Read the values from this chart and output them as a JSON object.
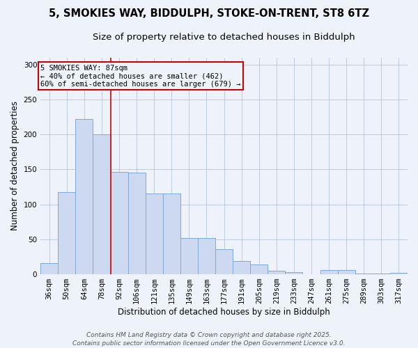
{
  "title_line1": "5, SMOKIES WAY, BIDDULPH, STOKE-ON-TRENT, ST8 6TZ",
  "title_line2": "Size of property relative to detached houses in Biddulph",
  "xlabel": "Distribution of detached houses by size in Biddulph",
  "ylabel": "Number of detached properties",
  "categories": [
    "36sqm",
    "50sqm",
    "64sqm",
    "78sqm",
    "92sqm",
    "106sqm",
    "121sqm",
    "135sqm",
    "149sqm",
    "163sqm",
    "177sqm",
    "191sqm",
    "205sqm",
    "219sqm",
    "233sqm",
    "247sqm",
    "261sqm",
    "275sqm",
    "289sqm",
    "303sqm",
    "317sqm"
  ],
  "values": [
    16,
    117,
    222,
    200,
    146,
    145,
    115,
    115,
    52,
    52,
    36,
    19,
    14,
    5,
    3,
    0,
    6,
    6,
    1,
    1,
    2
  ],
  "bar_color": "#ccd9f0",
  "bar_edge_color": "#7ea8d4",
  "grid_color": "#b8c4d8",
  "background_color": "#eef2fb",
  "vline_x": 3.5,
  "vline_color": "#cc0000",
  "annotation_text": "5 SMOKIES WAY: 87sqm\n← 40% of detached houses are smaller (462)\n60% of semi-detached houses are larger (679) →",
  "annotation_box_color": "#cc0000",
  "ylim": [
    0,
    310
  ],
  "yticks": [
    0,
    50,
    100,
    150,
    200,
    250,
    300
  ],
  "footer_line1": "Contains HM Land Registry data © Crown copyright and database right 2025.",
  "footer_line2": "Contains public sector information licensed under the Open Government Licence v3.0.",
  "title_fontsize": 10.5,
  "subtitle_fontsize": 9.5,
  "axis_label_fontsize": 8.5,
  "tick_fontsize": 7.5,
  "footer_fontsize": 6.5,
  "annotation_fontsize": 7.5
}
